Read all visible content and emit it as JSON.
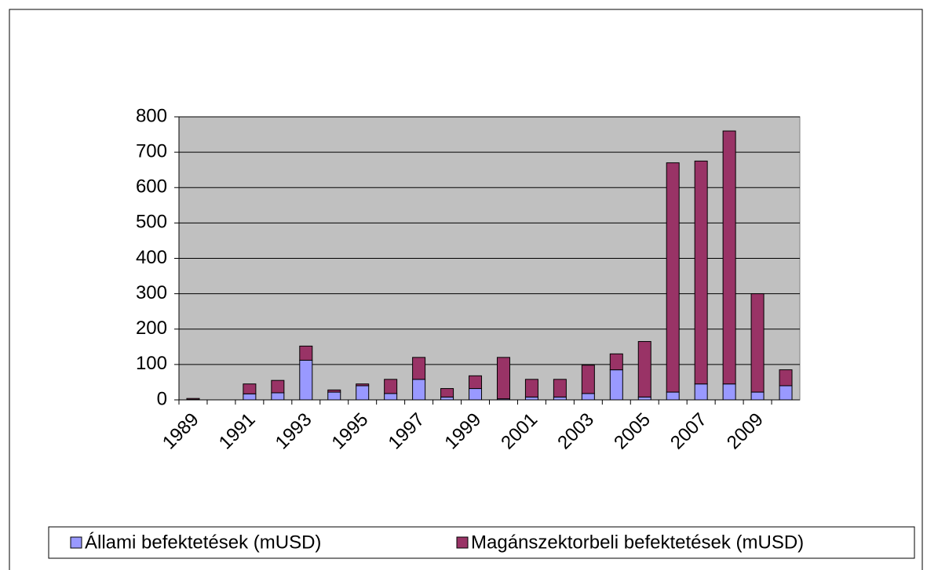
{
  "chart_data": {
    "type": "stacked_bar",
    "categories": [
      "1989",
      null,
      "1991",
      null,
      "1993",
      null,
      "1995",
      null,
      "1997",
      null,
      "1999",
      null,
      "2001",
      null,
      "2003",
      null,
      "2005",
      null,
      "2007",
      null,
      "2009",
      null
    ],
    "series": [
      {
        "name": "Állami befektetések (mUSD)",
        "color": "#9999ff",
        "values": [
          1,
          0,
          17,
          20,
          112,
          22,
          40,
          18,
          58,
          8,
          32,
          3,
          8,
          8,
          18,
          85,
          8,
          22,
          45,
          45,
          22,
          40
        ]
      },
      {
        "name": "Magánszektorbeli befektetések (mUSD)",
        "color": "#993366",
        "values": [
          3,
          0,
          28,
          35,
          40,
          6,
          5,
          40,
          62,
          24,
          36,
          117,
          50,
          50,
          80,
          45,
          157,
          648,
          630,
          715,
          278,
          45
        ]
      }
    ],
    "ylim": [
      0,
      800
    ],
    "yticks": [
      0,
      100,
      200,
      300,
      400,
      500,
      600,
      700,
      800
    ],
    "grid": true,
    "legend": "bottom"
  }
}
